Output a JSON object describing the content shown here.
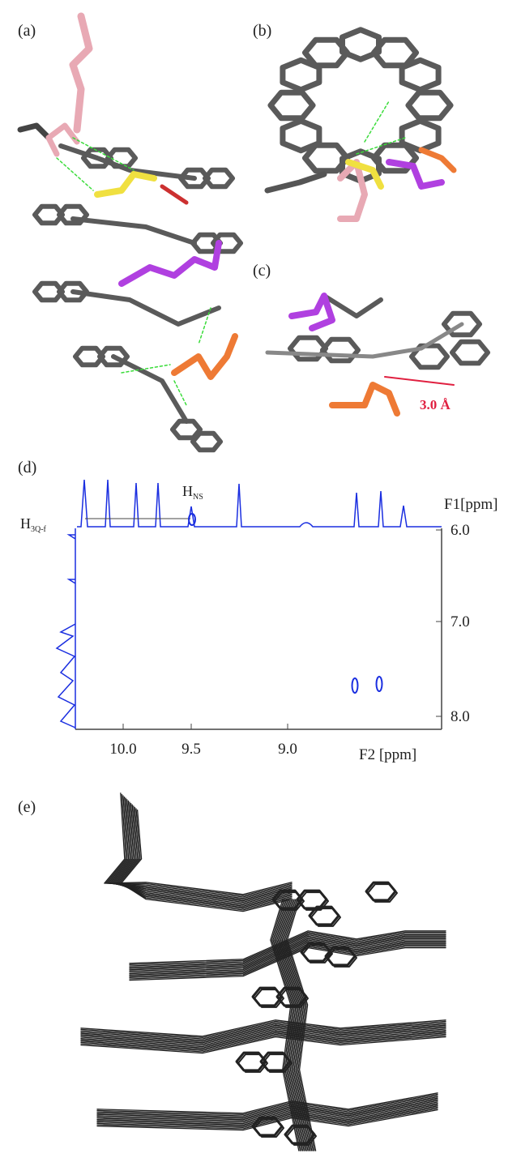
{
  "panels": {
    "a": {
      "label": "(a)"
    },
    "b": {
      "label": "(b)"
    },
    "c": {
      "label": "(c)",
      "distance": "3.0 Å"
    },
    "d": {
      "label": "(d)",
      "peak_label": {
        "main": "H",
        "sub": "NS"
      },
      "row_label": {
        "main": "H",
        "sub": "3Q-f"
      },
      "f1_axis": {
        "title": "F1[ppm]",
        "ticks": [
          "6.0",
          "7.0",
          "8.0"
        ]
      },
      "f2_axis": {
        "title": "F2 [ppm]",
        "ticks": [
          "10.0",
          "9.5",
          "9.0"
        ]
      }
    },
    "e": {
      "label": "(e)"
    }
  }
}
